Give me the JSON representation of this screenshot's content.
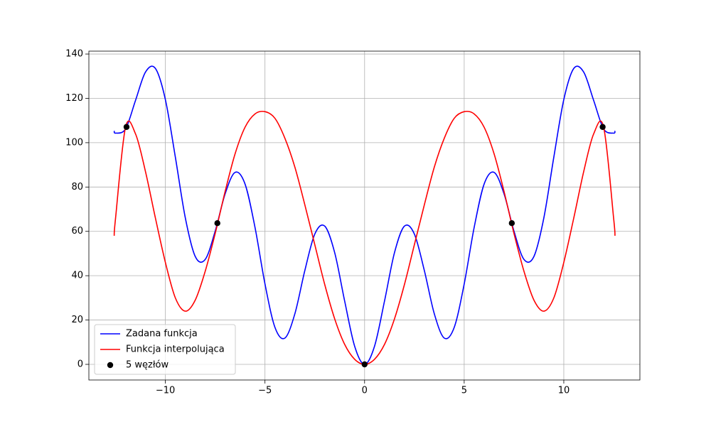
{
  "chart_data": {
    "type": "line",
    "x": [
      -12.57,
      -12.5,
      -12,
      -11.5,
      -11,
      -10.5,
      -10,
      -9.5,
      -9,
      -8.5,
      -8,
      -7.5,
      -7,
      -6.5,
      -6,
      -5.5,
      -5,
      -4.5,
      -4,
      -3.5,
      -3,
      -2.5,
      -2,
      -1.5,
      -1,
      -0.5,
      0,
      0.5,
      1,
      1.5,
      2,
      2.5,
      3,
      3.5,
      4,
      4.5,
      5,
      5.5,
      6,
      6.5,
      7,
      7.5,
      8,
      8.5,
      9,
      9.5,
      10,
      10.5,
      11,
      11.5,
      12,
      12.5,
      12.57
    ],
    "series": [
      {
        "name": "Zadana funkcja",
        "color": "#0000ff",
        "values": [
          105.33,
          104.31,
          106.19,
          119.03,
          131.83,
          133.48,
          119.46,
          93.54,
          66.15,
          48.67,
          47.35,
          60.07,
          76.93,
          86.6,
          81.33,
          61.75,
          36.27,
          16.71,
          11.86,
          22.81,
          42.32,
          58.78,
          62.37,
          50.35,
          28.55,
          8.22,
          0,
          8.22,
          28.55,
          50.35,
          62.37,
          58.78,
          42.32,
          22.81,
          11.86,
          16.71,
          36.27,
          61.75,
          81.33,
          86.6,
          76.93,
          60.07,
          47.35,
          48.67,
          66.15,
          93.54,
          119.46,
          133.48,
          131.83,
          119.03,
          106.19,
          104.31,
          105.33
        ]
      },
      {
        "name": "Funkcja interpolująca",
        "color": "#ff0000",
        "values": [
          58,
          66,
          107,
          104,
          87,
          66,
          46,
          30,
          24,
          29,
          42,
          59,
          78,
          95,
          107,
          113,
          114,
          111,
          102,
          89,
          72,
          54,
          36,
          20.5,
          9,
          2.3,
          0,
          2.3,
          9,
          20.5,
          36,
          54,
          72,
          89,
          102,
          111,
          114,
          113,
          107,
          95,
          78,
          59,
          42,
          29,
          24,
          30,
          46,
          66,
          87,
          104,
          107,
          66,
          58
        ]
      }
    ],
    "nodes": {
      "name": "5 węzłów",
      "color": "#000000",
      "x": [
        -11.95,
        -7.39,
        0,
        7.39,
        11.95
      ],
      "y": [
        107.1,
        63.7,
        0,
        63.7,
        107.1
      ]
    },
    "xlim": [
      -13.84,
      13.82
    ],
    "xticks": [
      {
        "value": -10,
        "label": "−10"
      },
      {
        "value": -5,
        "label": "−5"
      },
      0,
      5,
      10
    ],
    "ylim": [
      -7.05,
      141.3
    ],
    "yticks": [
      0,
      20,
      40,
      60,
      80,
      100,
      120,
      140
    ],
    "grid": true,
    "legend": "lower left"
  }
}
